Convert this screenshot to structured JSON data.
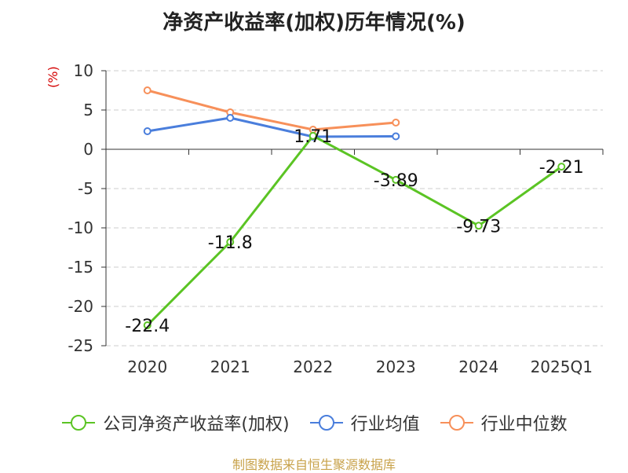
{
  "chart_data": {
    "type": "line",
    "title": "净资产收益率(加权)历年情况(%)",
    "ylabel": "(%)",
    "categories": [
      "2020",
      "2021",
      "2022",
      "2023",
      "2024",
      "2025Q1"
    ],
    "ylim": [
      -25,
      10
    ],
    "yticks": [
      10,
      5,
      0,
      -5,
      -10,
      -15,
      -20,
      -25
    ],
    "grid": true,
    "legend_position": "bottom",
    "series": [
      {
        "name": "公司净资产收益率(加权)",
        "color": "#5bc424",
        "values": [
          -22.4,
          -11.8,
          1.71,
          -3.89,
          -9.73,
          -2.21
        ],
        "labels": [
          "-22.4",
          "-11.8",
          "1.71",
          "-3.89",
          "-9.73",
          "-2.21"
        ]
      },
      {
        "name": "行业均值",
        "color": "#4a7edc",
        "values": [
          2.3,
          4.0,
          1.6,
          1.65,
          null,
          null
        ]
      },
      {
        "name": "行业中位数",
        "color": "#f7905a",
        "values": [
          7.5,
          4.7,
          2.5,
          3.4,
          null,
          null
        ]
      }
    ]
  },
  "source_text": "制图数据来自恒生聚源数据库"
}
